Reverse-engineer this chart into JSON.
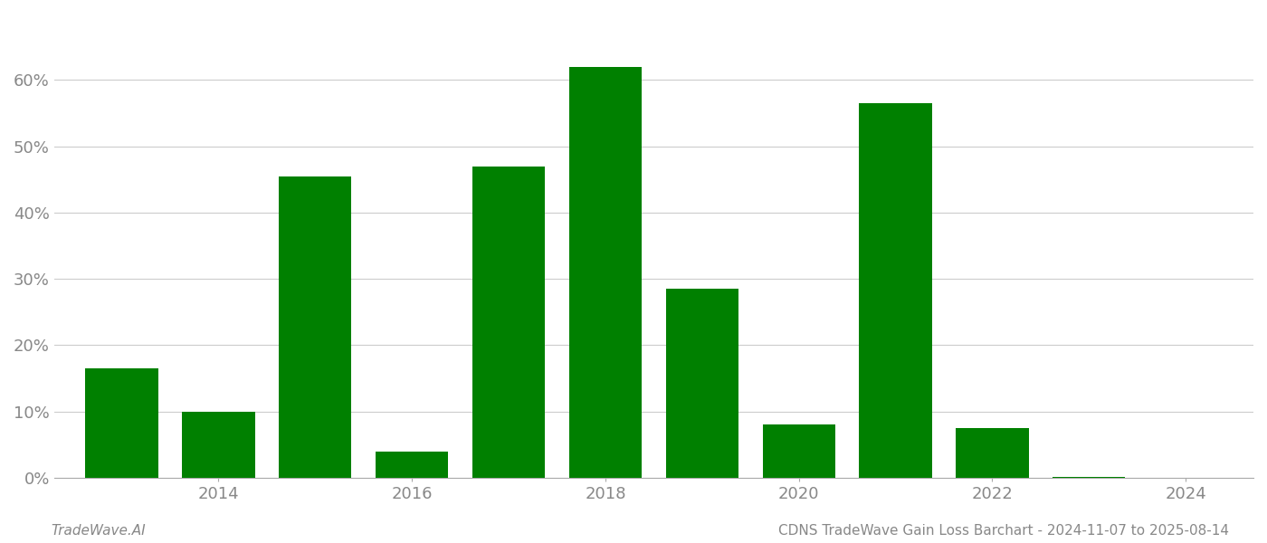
{
  "years": [
    2013,
    2014,
    2015,
    2016,
    2017,
    2018,
    2019,
    2020,
    2021,
    2022,
    2023
  ],
  "values": [
    0.165,
    0.1,
    0.455,
    0.04,
    0.47,
    0.62,
    0.285,
    0.08,
    0.565,
    0.075,
    0.002
  ],
  "bar_color": "#008000",
  "background_color": "#ffffff",
  "grid_color": "#cccccc",
  "xlim": [
    2012.3,
    2024.7
  ],
  "ylim": [
    0,
    0.7
  ],
  "xtick_positions": [
    2014,
    2016,
    2018,
    2020,
    2022,
    2024
  ],
  "xtick_labels": [
    "2014",
    "2016",
    "2018",
    "2020",
    "2022",
    "2024"
  ],
  "ytick_positions": [
    0.0,
    0.1,
    0.2,
    0.3,
    0.4,
    0.5,
    0.6
  ],
  "ytick_labels": [
    "0%",
    "10%",
    "20%",
    "30%",
    "40%",
    "50%",
    "60%"
  ],
  "footer_left": "TradeWave.AI",
  "footer_right": "CDNS TradeWave Gain Loss Barchart - 2024-11-07 to 2025-08-14",
  "bar_width": 0.75,
  "tick_fontsize": 13,
  "footer_fontsize": 11
}
